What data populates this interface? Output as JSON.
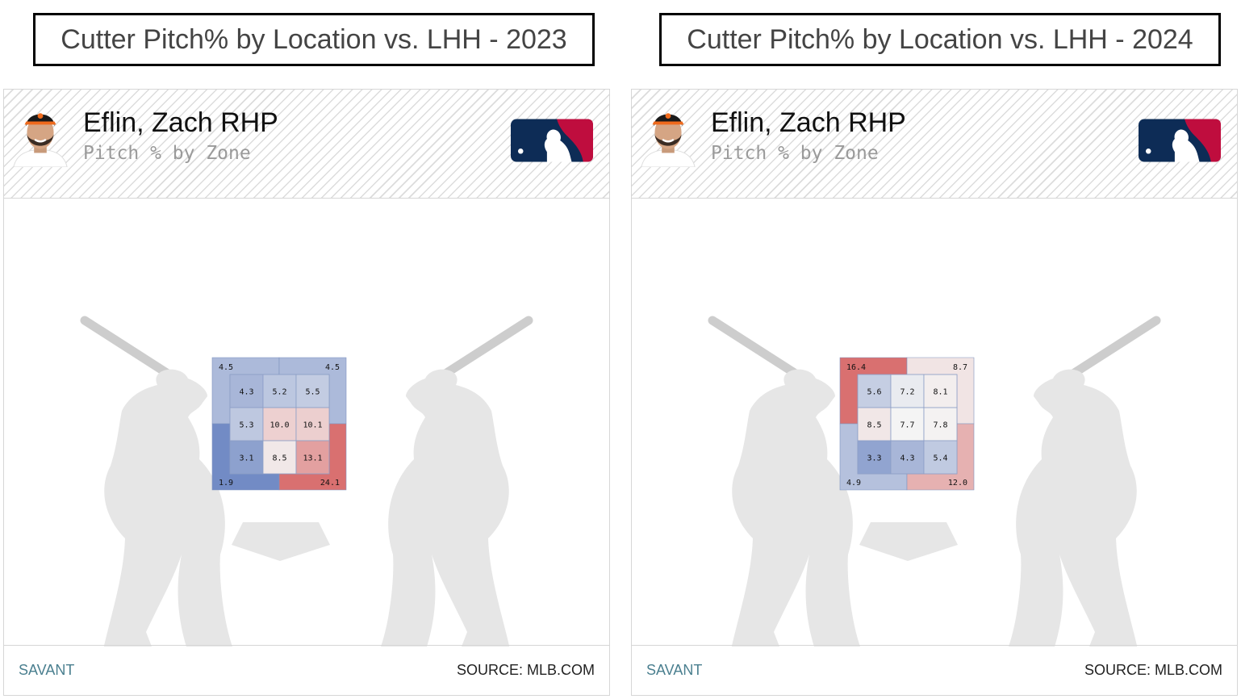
{
  "panels": [
    {
      "title": "Cutter Pitch% by Location vs. LHH - 2023",
      "player_name": "Eflin, Zach RHP",
      "subtitle": "Pitch % by Zone",
      "savant_label": "SAVANT",
      "source_label": "SOURCE: MLB.COM"
    },
    {
      "title": "Cutter Pitch% by Location vs. LHH - 2024",
      "player_name": "Eflin, Zach RHP",
      "subtitle": "Pitch % by Zone",
      "savant_label": "SAVANT",
      "source_label": "SOURCE: MLB.COM"
    }
  ],
  "colors": {
    "cold": "#4f6fb8",
    "neutral": "#f4f4f4",
    "hot": "#d97070",
    "silhouette": "#e6e6e6",
    "mlb_navy": "#0d2c56",
    "mlb_red": "#bf0d3e"
  },
  "icons": {
    "avatar": "player-headshot-icon",
    "logo": "mlb-logo-icon"
  },
  "chart_data": [
    {
      "type": "heatmap",
      "title": "Cutter Pitch% by Location vs. LHH - 2023",
      "metric": "Pitch % by Zone",
      "zones": [
        [
          4.3,
          5.2,
          5.5
        ],
        [
          5.3,
          10.0,
          10.1
        ],
        [
          3.1,
          8.5,
          13.1
        ]
      ],
      "outer_zones": {
        "top_left": 4.5,
        "top_right": 4.5,
        "bottom_left": 1.9,
        "bottom_right": 24.1
      }
    },
    {
      "type": "heatmap",
      "title": "Cutter Pitch% by Location vs. LHH - 2024",
      "metric": "Pitch % by Zone",
      "zones": [
        [
          5.6,
          7.2,
          8.1
        ],
        [
          8.5,
          7.7,
          7.8
        ],
        [
          3.3,
          4.3,
          5.4
        ]
      ],
      "outer_zones": {
        "top_left": 16.4,
        "top_right": 8.7,
        "bottom_left": 4.9,
        "bottom_right": 12.0
      }
    }
  ]
}
